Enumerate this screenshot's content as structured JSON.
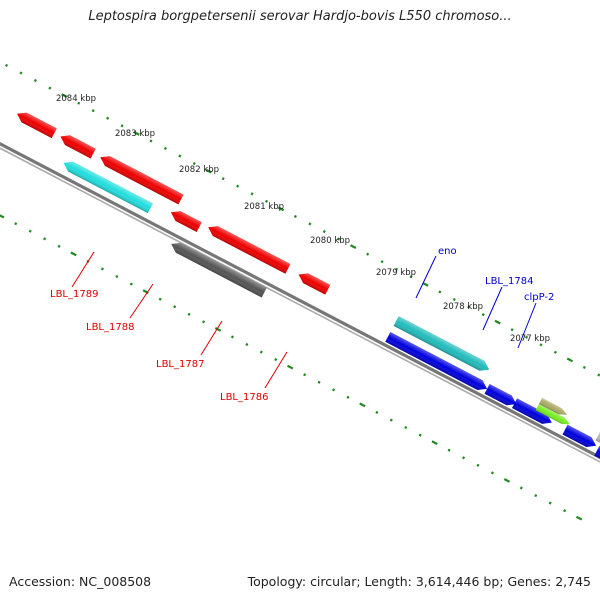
{
  "title": "Leptospira borgpetersenii serovar Hardjo-bovis L550 chromoso...",
  "footer": {
    "accession_label": "Accession:",
    "accession": "NC_008508",
    "topology_label": "Topology:",
    "topology": "circular",
    "length_label": "Length:",
    "length": "3,614,446 bp",
    "genes_label": "Genes:",
    "genes": "2,745"
  },
  "ticks": [
    "2084 kbp",
    "2083 kbp",
    "2082 kbp",
    "2081 kbp",
    "2080 kbp",
    "2079 kbp",
    "2078 kbp",
    "2077 kbp"
  ],
  "genes": [
    {
      "label": "",
      "color": "#ee0000",
      "strand": "reverse"
    },
    {
      "label": "",
      "color": "#ee0000",
      "strand": "reverse"
    },
    {
      "label": "",
      "color": "#ee0000",
      "strand": "reverse"
    },
    {
      "label": "LBL_1789",
      "color": "#22dddd",
      "strand": "reverse"
    },
    {
      "label": "",
      "color": "#ee0000",
      "strand": "reverse"
    },
    {
      "label": "LBL_1788",
      "color": "#ee0000",
      "strand": "reverse"
    },
    {
      "label": "LBL_1787",
      "color": "#555555",
      "strand": "reverse"
    },
    {
      "label": "LBL_1786",
      "color": "#ee0000",
      "strand": "reverse"
    },
    {
      "label": "eno",
      "color": "#22bbbb",
      "strand": "forward"
    },
    {
      "label": "",
      "color": "#0000dd",
      "strand": "forward"
    },
    {
      "label": "",
      "color": "#0000dd",
      "strand": "forward"
    },
    {
      "label": "LBL_1784",
      "color": "#0000dd",
      "strand": "forward"
    },
    {
      "label": "clpP-2",
      "color": "#aaaa66",
      "strand": "forward"
    },
    {
      "label": "",
      "color": "#77ee22",
      "strand": "forward"
    },
    {
      "label": "",
      "color": "#0000dd",
      "strand": "forward"
    },
    {
      "label": "",
      "color": "#bbbbbb",
      "strand": "forward"
    },
    {
      "label": "",
      "color": "#0000dd",
      "strand": "forward"
    }
  ],
  "colors": {
    "backbone": "#777777",
    "tick": "#228822",
    "tick_label": "#222222",
    "reverse_label": "#dd0000",
    "forward_label": "#0000cc"
  }
}
